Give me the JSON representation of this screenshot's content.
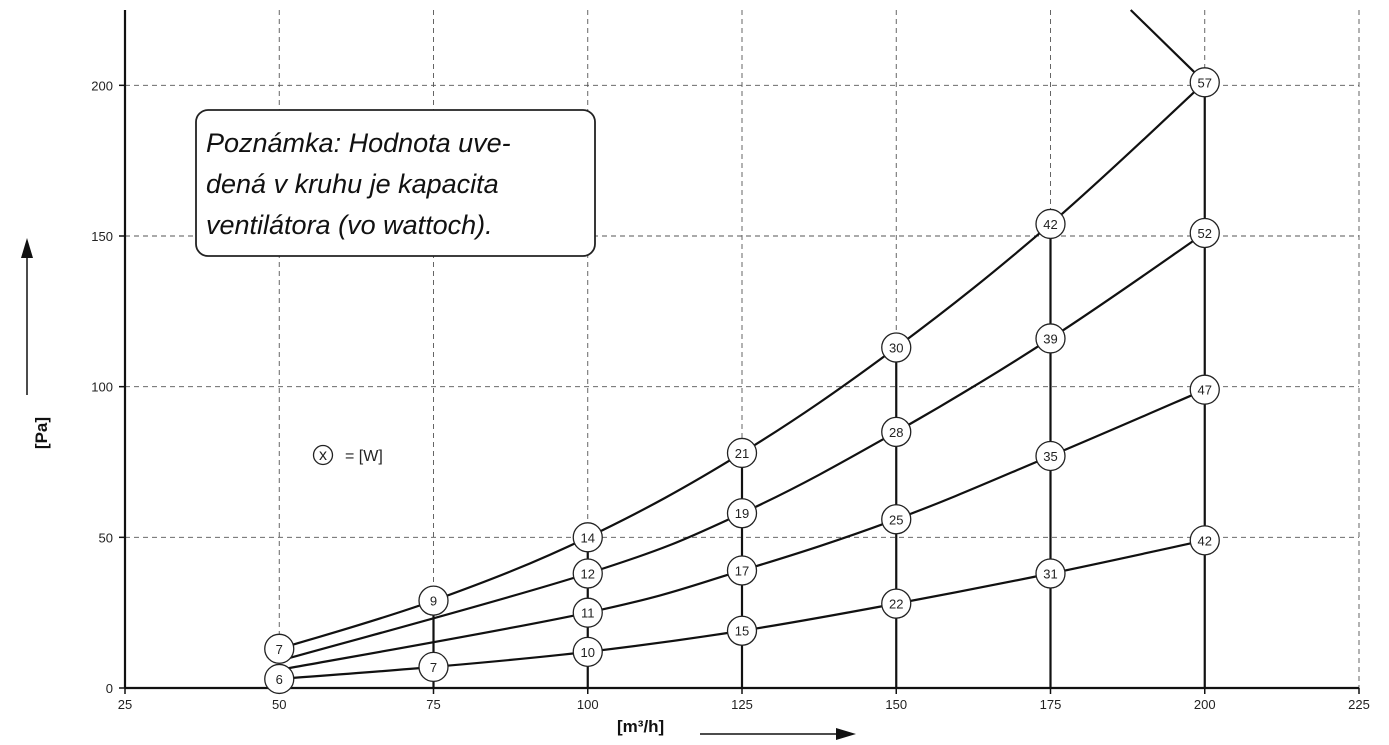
{
  "chart_data": {
    "type": "line",
    "xlabel": "[m³/h]",
    "ylabel": "[Pa]",
    "xlim": [
      25,
      225
    ],
    "ylim": [
      0,
      225
    ],
    "x_ticks": [
      25,
      50,
      75,
      100,
      125,
      150,
      175,
      200,
      225
    ],
    "y_ticks": [
      0,
      50,
      100,
      150,
      200
    ],
    "grid": true,
    "note": [
      "Poznámka: Hodnota uve-",
      "dená v kruhu je kapacita",
      "ventilátora (vo wattoch)."
    ],
    "legend": {
      "symbol": "x",
      "text": "= [W]"
    },
    "series": [
      {
        "points": [
          {
            "x": 50,
            "y": 13,
            "label": "7"
          },
          {
            "x": 75,
            "y": 29,
            "label": "9"
          },
          {
            "x": 100,
            "y": 50,
            "label": "14"
          },
          {
            "x": 125,
            "y": 78,
            "label": "21"
          },
          {
            "x": 150,
            "y": 113,
            "label": "30"
          },
          {
            "x": 175,
            "y": 154,
            "label": "42"
          },
          {
            "x": 200,
            "y": 201,
            "label": "57"
          }
        ]
      },
      {
        "points": [
          {
            "x": 50,
            "y": 9,
            "label": ""
          },
          {
            "x": 100,
            "y": 38,
            "label": "12"
          },
          {
            "x": 125,
            "y": 58,
            "label": "19"
          },
          {
            "x": 150,
            "y": 85,
            "label": "28"
          },
          {
            "x": 175,
            "y": 116,
            "label": "39"
          },
          {
            "x": 200,
            "y": 151,
            "label": "52"
          }
        ]
      },
      {
        "points": [
          {
            "x": 50,
            "y": 6,
            "label": ""
          },
          {
            "x": 100,
            "y": 25,
            "label": "11"
          },
          {
            "x": 125,
            "y": 39,
            "label": "17"
          },
          {
            "x": 150,
            "y": 56,
            "label": "25"
          },
          {
            "x": 175,
            "y": 77,
            "label": "35"
          },
          {
            "x": 200,
            "y": 99,
            "label": "47"
          }
        ]
      },
      {
        "points": [
          {
            "x": 50,
            "y": 3,
            "label": "6"
          },
          {
            "x": 75,
            "y": 7,
            "label": "7"
          },
          {
            "x": 100,
            "y": 12,
            "label": "10"
          },
          {
            "x": 125,
            "y": 19,
            "label": "15"
          },
          {
            "x": 150,
            "y": 28,
            "label": "22"
          },
          {
            "x": 175,
            "y": 38,
            "label": "31"
          },
          {
            "x": 200,
            "y": 49,
            "label": "42"
          }
        ]
      }
    ],
    "limit_line": [
      {
        "x": 188,
        "y": 226
      },
      {
        "x": 200,
        "y": 201
      }
    ],
    "vertical_ranges": [
      {
        "x": 75,
        "y_top": 29
      },
      {
        "x": 100,
        "y_top": 50
      },
      {
        "x": 125,
        "y_top": 78
      },
      {
        "x": 150,
        "y_top": 113
      },
      {
        "x": 175,
        "y_top": 154
      },
      {
        "x": 200,
        "y_top": 201
      }
    ]
  }
}
